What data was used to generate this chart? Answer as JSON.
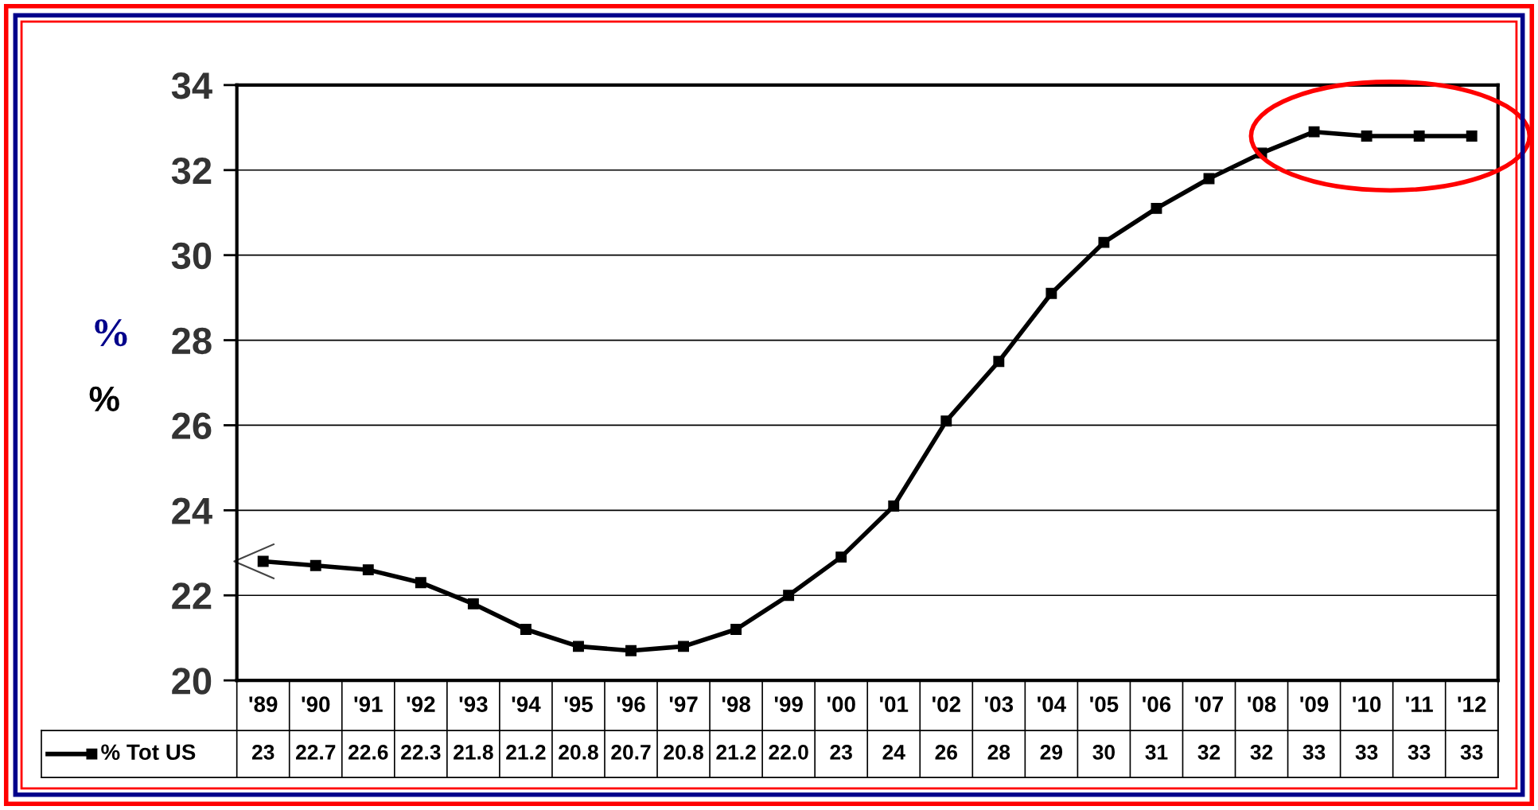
{
  "chart_data": {
    "type": "line",
    "ylabel": "%",
    "annotations": [
      "%"
    ],
    "categories": [
      "'89",
      "'90",
      "'91",
      "'92",
      "'93",
      "'94",
      "'95",
      "'96",
      "'97",
      "'98",
      "'99",
      "'00",
      "'01",
      "'02",
      "'03",
      "'04",
      "'05",
      "'06",
      "'07",
      "'08",
      "'09",
      "'10",
      "'11",
      "'12"
    ],
    "series": [
      {
        "name": "% Tot US",
        "color": "#000000",
        "values": [
          22.8,
          22.7,
          22.6,
          22.3,
          21.8,
          21.2,
          20.8,
          20.7,
          20.8,
          21.2,
          22.0,
          22.9,
          24.1,
          26.1,
          27.5,
          29.1,
          30.3,
          31.1,
          31.8,
          32.4,
          32.9,
          32.8,
          32.8,
          32.8
        ],
        "value_labels": [
          "23",
          "22.7",
          "22.6",
          "22.3",
          "21.8",
          "21.2",
          "20.8",
          "20.7",
          "20.8",
          "21.2",
          "22.0",
          "23",
          "24",
          "26",
          "28",
          "29",
          "30",
          "31",
          "32",
          "32",
          "33",
          "33",
          "33",
          "33"
        ]
      }
    ],
    "ylim": [
      20,
      34
    ],
    "yticks": [
      20,
      22,
      24,
      26,
      28,
      30,
      32,
      34
    ],
    "grid": "y",
    "legend": "bottom",
    "marker": "square",
    "line_style": "solid"
  }
}
